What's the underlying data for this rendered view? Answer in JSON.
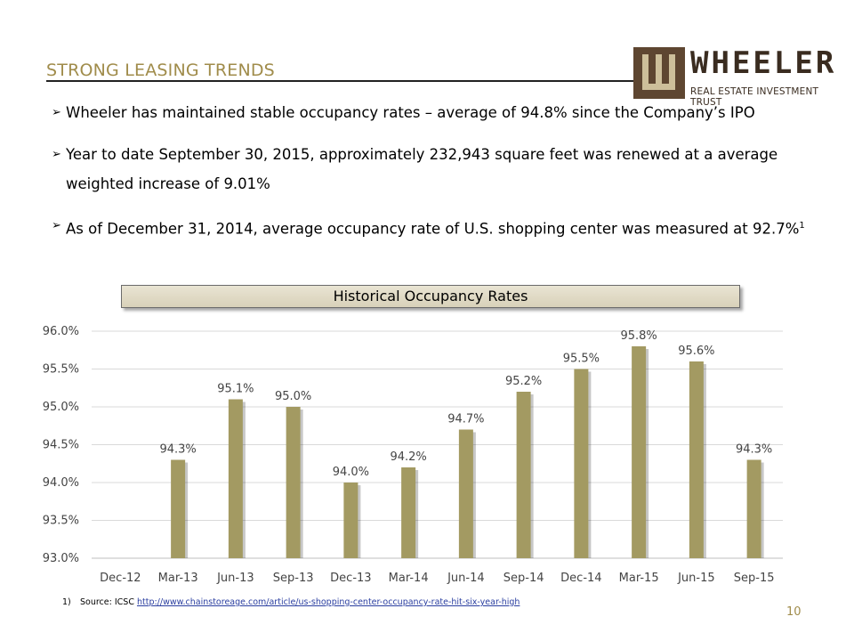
{
  "slide": {
    "title": "STRONG LEASING TRENDS",
    "page_number": "10"
  },
  "logo": {
    "wordmark": "WHEELER",
    "subtitle": "REAL ESTATE INVESTMENT TRUST"
  },
  "bullets": [
    {
      "text": " Wheeler has maintained stable occupancy rates – average of 94.8% since the Company’s IPO",
      "sup": ""
    },
    {
      "text": "Year to date September 30, 2015, approximately 232,943 square feet was renewed at a average weighted increase of 9.01%",
      "sup": ""
    },
    {
      "text": "As of December 31, 2014, average occupancy rate of U.S. shopping center was measured at 92.7%",
      "sup": "1"
    }
  ],
  "chart_header": "Historical Occupancy Rates",
  "chart_data": {
    "type": "bar",
    "title": "Historical Occupancy Rates",
    "categories": [
      "Dec-12",
      "Mar-13",
      "Jun-13",
      "Sep-13",
      "Dec-13",
      "Mar-14",
      "Jun-14",
      "Sep-14",
      "Dec-14",
      "Mar-15",
      "Jun-15",
      "Sep-15"
    ],
    "values": [
      null,
      94.3,
      95.1,
      95.0,
      94.0,
      94.2,
      94.7,
      95.2,
      95.5,
      95.8,
      95.6,
      94.3
    ],
    "data_labels": [
      "",
      "94.3%",
      "95.1%",
      "95.0%",
      "94.0%",
      "94.2%",
      "94.7%",
      "95.2%",
      "95.5%",
      "95.8%",
      "95.6%",
      "94.3%"
    ],
    "y_ticks": [
      93.0,
      93.5,
      94.0,
      94.5,
      95.0,
      95.5,
      96.0
    ],
    "y_tick_labels": [
      "93.0%",
      "93.5%",
      "94.0%",
      "94.5%",
      "95.0%",
      "95.5%",
      "96.0%"
    ],
    "ylim": [
      93.0,
      96.0
    ],
    "xlabel": "",
    "ylabel": "",
    "grid": true,
    "bar_color": "#a39a62"
  },
  "footnote": {
    "number": "1)",
    "source_label": "Source: ICSC ",
    "link_text": "http://www.chainstoreage.com/article/us-shopping-center-occupancy-rate-hit-six-year-high"
  }
}
